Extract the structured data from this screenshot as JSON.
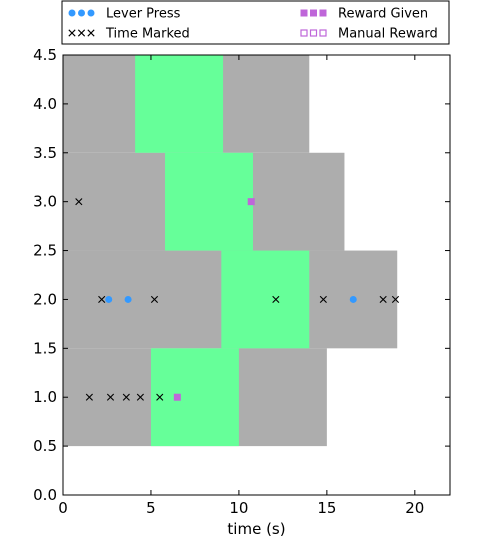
{
  "chart_data": {
    "type": "scatter",
    "title": "",
    "xlabel": "time (s)",
    "ylabel": "",
    "xlim": [
      0,
      22
    ],
    "ylim": [
      0,
      4.5
    ],
    "xticks": [
      0,
      5,
      10,
      15,
      20
    ],
    "yticks": [
      0.0,
      0.5,
      1.0,
      1.5,
      2.0,
      2.5,
      3.0,
      3.5,
      4.0,
      4.5
    ],
    "xtick_labels": [
      "0",
      "5",
      "10",
      "15",
      "20"
    ],
    "ytick_labels": [
      "0.0",
      "0.5",
      "1.0",
      "1.5",
      "2.0",
      "2.5",
      "3.0",
      "3.5",
      "4.0",
      "4.5"
    ],
    "legend_position": "top",
    "colors": {
      "trial_background": "#adadad",
      "reward_window": "#66ff99",
      "lever_press": "#3399ff",
      "time_marked": "#000000",
      "reward_given": "#bf66d9",
      "manual_reward": "#bf66d9"
    },
    "trials": [
      {
        "y": 1,
        "start": 0,
        "end": 15,
        "window": [
          5,
          10
        ]
      },
      {
        "y": 2,
        "start": 0,
        "end": 19,
        "window": [
          9,
          14
        ]
      },
      {
        "y": 3,
        "start": 0,
        "end": 16,
        "window": [
          5.8,
          10.8
        ]
      },
      {
        "y": 4,
        "start": 0,
        "end": 14,
        "window": [
          4.1,
          9.1
        ]
      }
    ],
    "series": [
      {
        "name": "Lever Press",
        "marker": "circle",
        "points": [
          [
            2.6,
            2
          ],
          [
            3.7,
            2
          ],
          [
            16.5,
            2
          ]
        ]
      },
      {
        "name": "Time Marked",
        "marker": "x",
        "points": [
          [
            0.9,
            3
          ],
          [
            1.5,
            1
          ],
          [
            2.2,
            2
          ],
          [
            2.7,
            1
          ],
          [
            3.6,
            1
          ],
          [
            4.4,
            1
          ],
          [
            5.2,
            2
          ],
          [
            5.5,
            1
          ],
          [
            12.1,
            2
          ],
          [
            14.8,
            2
          ],
          [
            18.2,
            2
          ],
          [
            18.9,
            2
          ]
        ]
      },
      {
        "name": "Reward Given",
        "marker": "square",
        "points": [
          [
            10.7,
            3
          ],
          [
            6.5,
            1
          ]
        ]
      },
      {
        "name": "Manual Reward",
        "marker": "open-square",
        "points": []
      }
    ]
  }
}
